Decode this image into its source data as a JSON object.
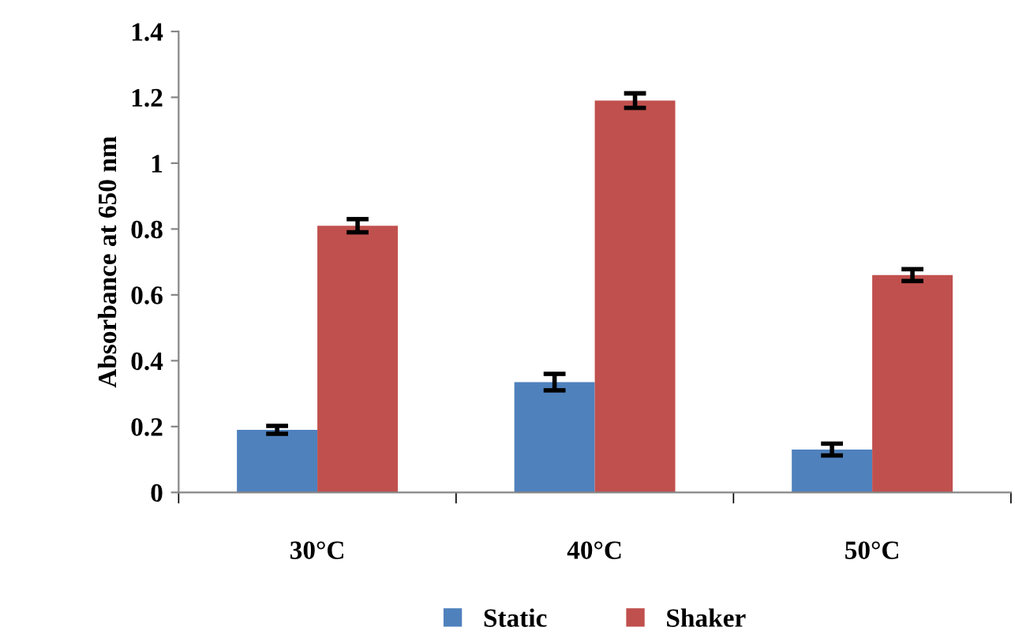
{
  "chart_data": {
    "type": "bar",
    "ylabel": "Absorbance at 650 nm",
    "categories": [
      "30°C",
      "40°C",
      "50°C"
    ],
    "series": [
      {
        "name": "Static",
        "color": "#4f81bd",
        "values": [
          0.19,
          0.335,
          0.13
        ],
        "errors": [
          0.012,
          0.025,
          0.018
        ]
      },
      {
        "name": "Shaker",
        "color": "#c0504d",
        "values": [
          0.81,
          1.19,
          0.66
        ],
        "errors": [
          0.02,
          0.022,
          0.018
        ]
      }
    ],
    "ylim": [
      0,
      1.4
    ],
    "yticks": [
      0,
      0.2,
      0.4,
      0.6,
      0.8,
      {
        "value": 1,
        "label": "1"
      },
      1.2,
      1.4
    ],
    "grid": false,
    "legend": "bottom"
  }
}
